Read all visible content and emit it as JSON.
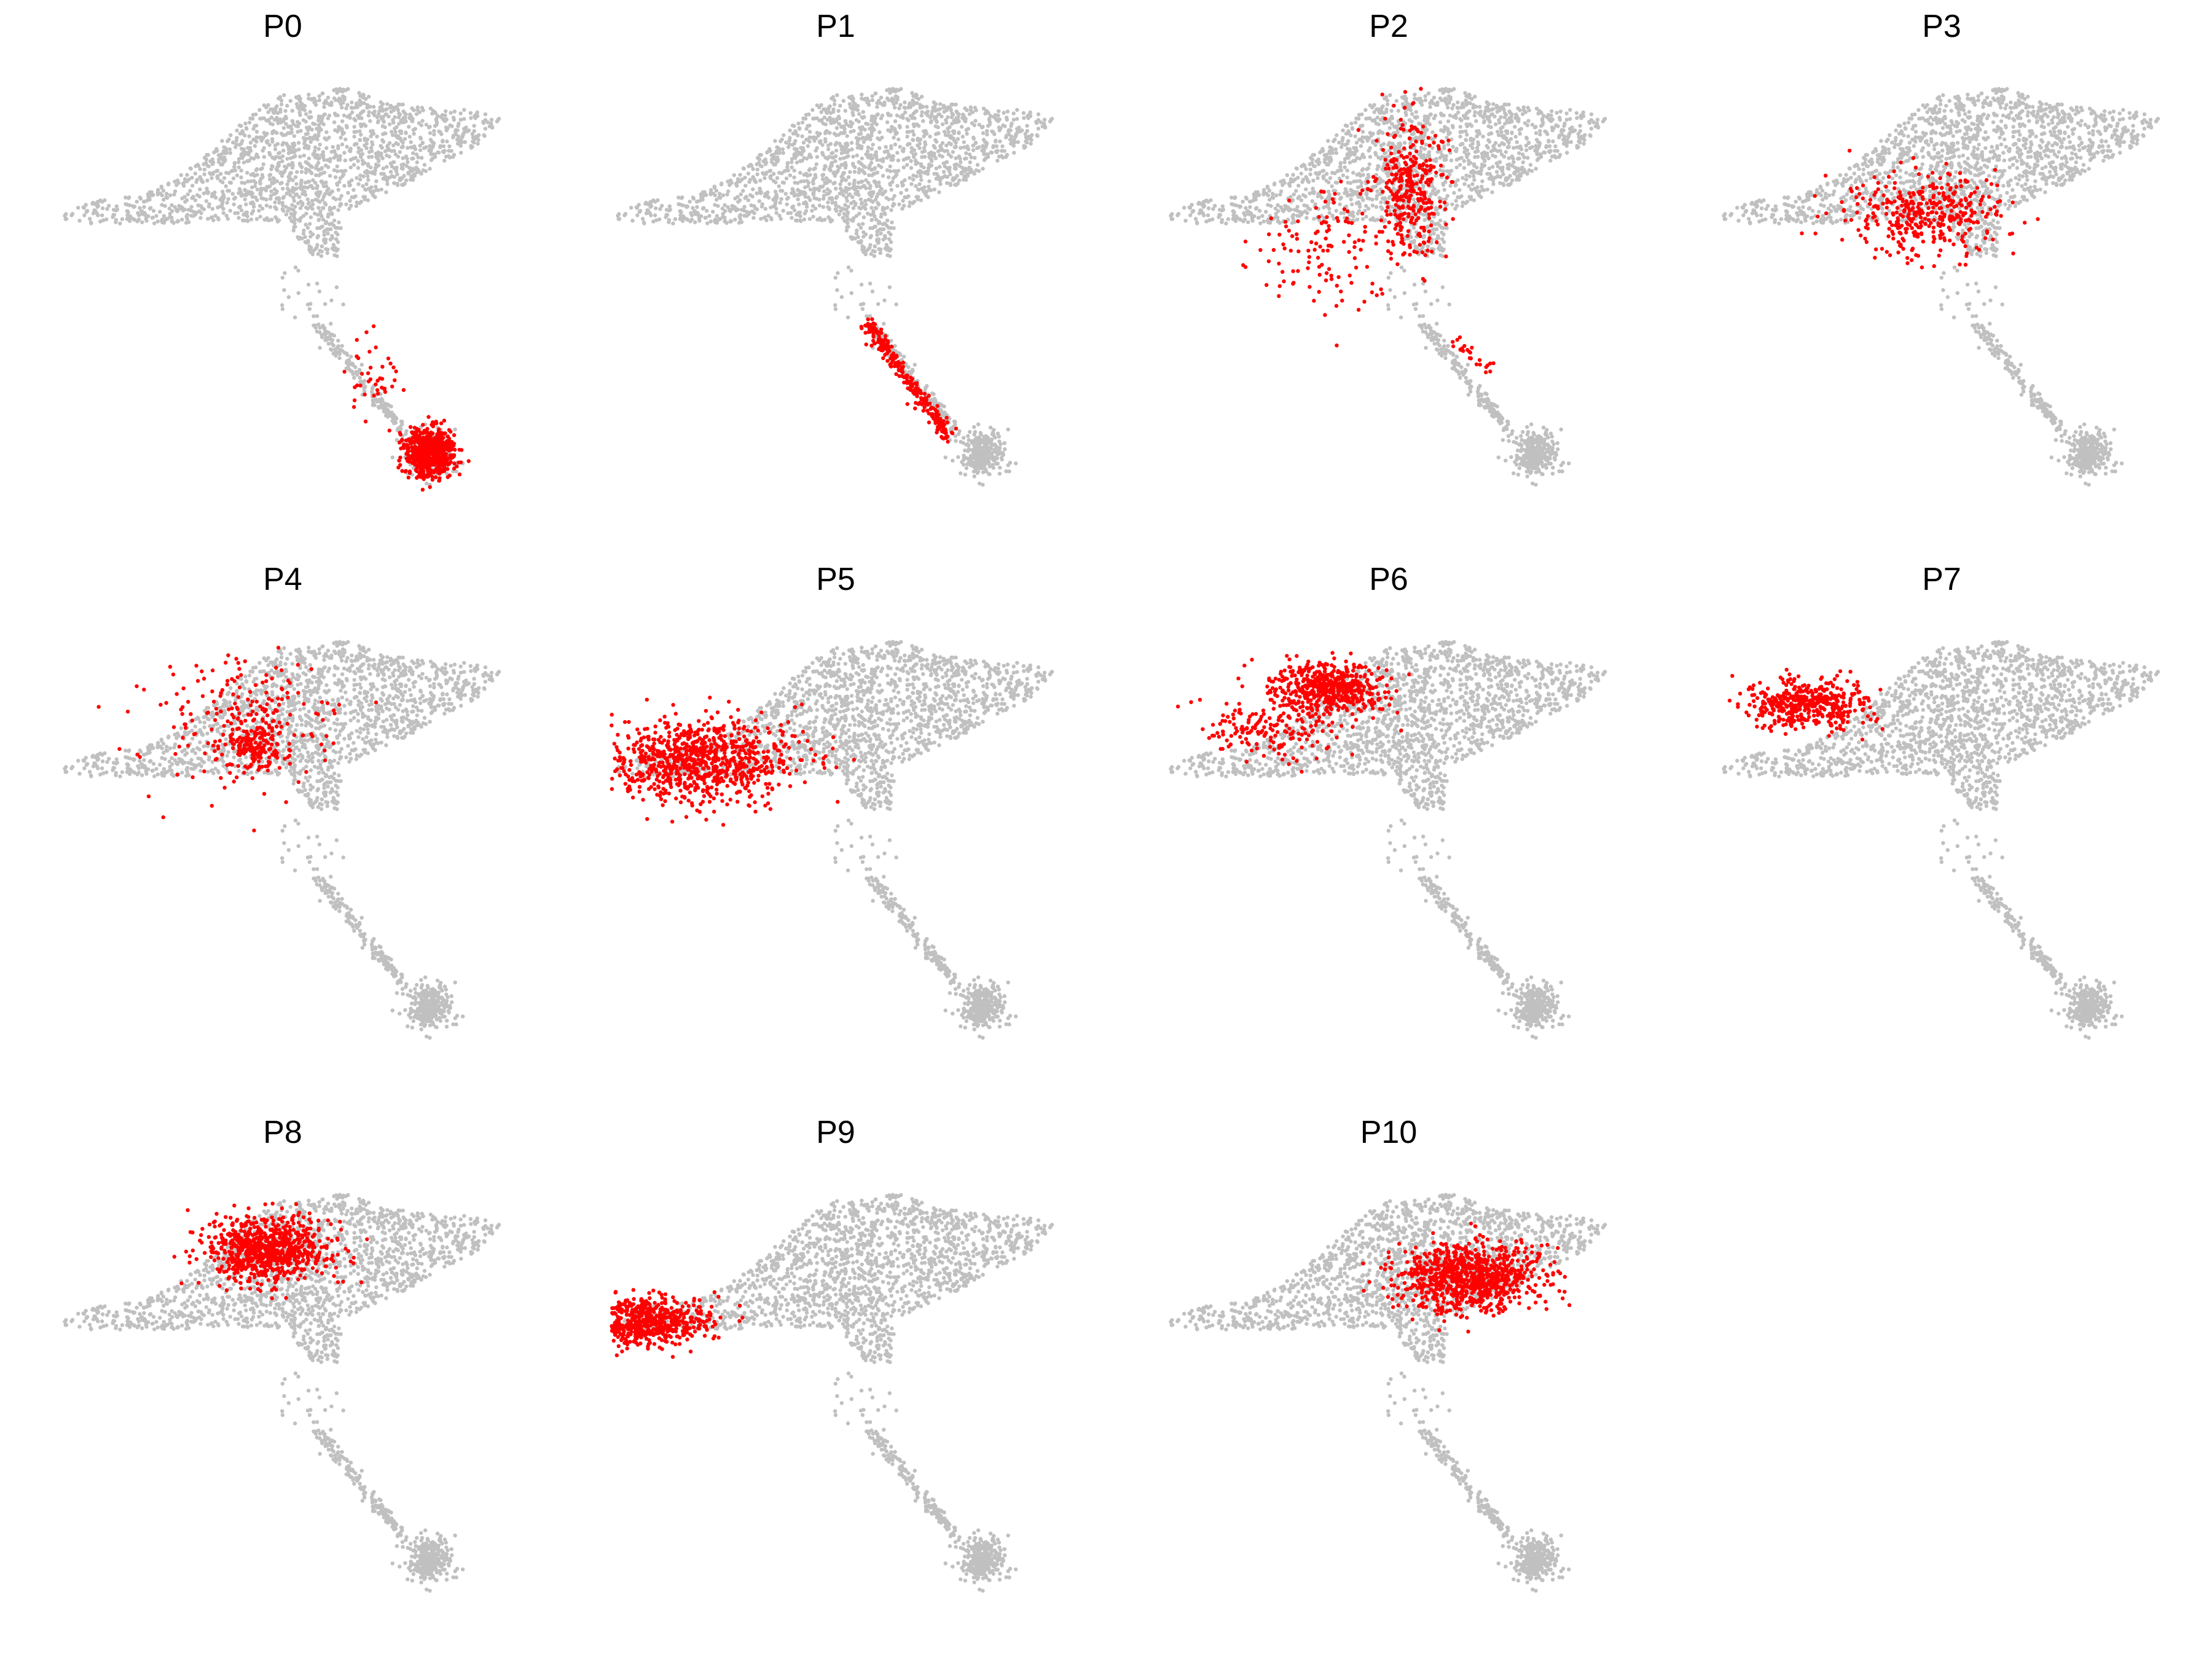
{
  "figure": {
    "layout": {
      "rows": 3,
      "columns": 4
    },
    "background_color": "#c0c0c0",
    "highlight_color": "#ff0000"
  },
  "chart_data": [
    {
      "type": "scatter",
      "title": "P0",
      "highlight": [
        {
          "cx": 0.755,
          "cy": 0.905,
          "sx": 0.025,
          "sy": 0.03,
          "n": 620
        },
        {
          "cx": 0.64,
          "cy": 0.72,
          "sx": 0.03,
          "sy": 0.05,
          "n": 40
        }
      ]
    },
    {
      "type": "scatter",
      "title": "P1",
      "highlight": [
        {
          "line": [
            0.52,
            0.58,
            0.685,
            0.86
          ],
          "jitter": 0.008,
          "n": 260
        }
      ]
    },
    {
      "type": "scatter",
      "title": "P2",
      "highlight": [
        {
          "cx": 0.5,
          "cy": 0.25,
          "sx": 0.035,
          "sy": 0.09,
          "n": 320
        },
        {
          "cx": 0.32,
          "cy": 0.4,
          "sx": 0.08,
          "sy": 0.08,
          "n": 120
        },
        {
          "line": [
            0.58,
            0.62,
            0.66,
            0.7
          ],
          "jitter": 0.01,
          "n": 25
        }
      ]
    },
    {
      "type": "scatter",
      "title": "P3",
      "highlight": [
        {
          "cx": 0.43,
          "cy": 0.32,
          "sx": 0.08,
          "sy": 0.05,
          "n": 380
        }
      ]
    },
    {
      "type": "scatter",
      "title": "P4",
      "highlight": [
        {
          "cx": 0.4,
          "cy": 0.26,
          "sx": 0.03,
          "sy": 0.03,
          "n": 160
        },
        {
          "cx": 0.38,
          "cy": 0.2,
          "sx": 0.1,
          "sy": 0.08,
          "n": 200
        }
      ]
    },
    {
      "type": "scatter",
      "title": "P5",
      "highlight": [
        {
          "cx": 0.18,
          "cy": 0.3,
          "sx": 0.095,
          "sy": 0.05,
          "n": 900
        }
      ]
    },
    {
      "type": "scatter",
      "title": "P6",
      "highlight": [
        {
          "cx": 0.33,
          "cy": 0.12,
          "sx": 0.06,
          "sy": 0.03,
          "n": 500
        },
        {
          "cx": 0.22,
          "cy": 0.22,
          "sx": 0.08,
          "sy": 0.04,
          "n": 180
        }
      ]
    },
    {
      "type": "scatter",
      "title": "P7",
      "highlight": [
        {
          "cx": 0.18,
          "cy": 0.16,
          "sx": 0.06,
          "sy": 0.03,
          "n": 450
        }
      ]
    },
    {
      "type": "scatter",
      "title": "P8",
      "highlight": [
        {
          "cx": 0.43,
          "cy": 0.14,
          "sx": 0.065,
          "sy": 0.04,
          "n": 800
        }
      ]
    },
    {
      "type": "scatter",
      "title": "P9",
      "highlight": [
        {
          "cx": 0.08,
          "cy": 0.32,
          "sx": 0.06,
          "sy": 0.03,
          "n": 600
        }
      ]
    },
    {
      "type": "scatter",
      "title": "P10",
      "highlight": [
        {
          "cx": 0.62,
          "cy": 0.21,
          "sx": 0.07,
          "sy": 0.04,
          "n": 900
        }
      ]
    }
  ]
}
